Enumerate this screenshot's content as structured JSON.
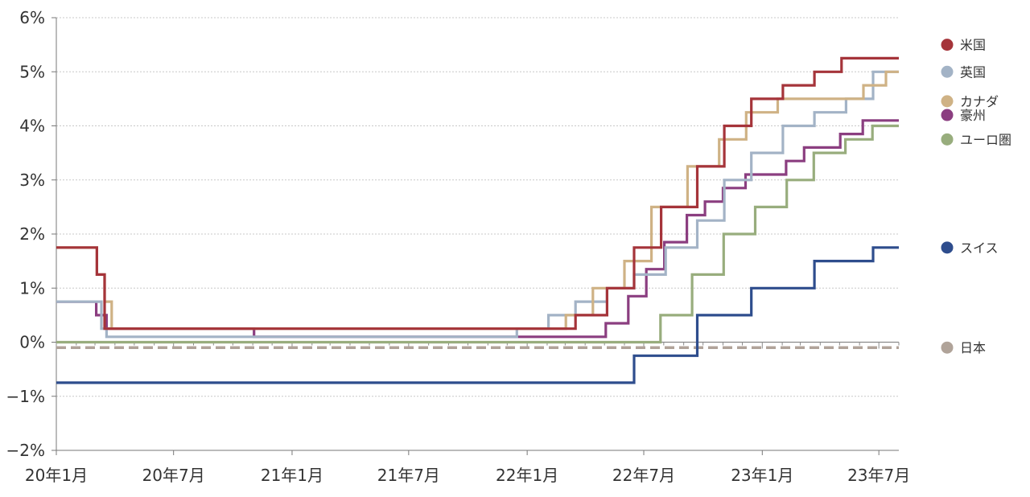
{
  "chart_data": {
    "type": "line",
    "step": true,
    "title": "",
    "xlabel": "",
    "ylabel": "",
    "ylim": [
      -2,
      6
    ],
    "yticks": [
      6,
      5,
      4,
      3,
      2,
      1,
      0,
      -1,
      -2
    ],
    "ytick_labels": [
      "6%",
      "5%",
      "4%",
      "3%",
      "2%",
      "1%",
      "0%",
      "−1%",
      "−2%"
    ],
    "xlim": [
      "2020-01-01",
      "2023-08-01"
    ],
    "xticks": [
      "2020-01-01",
      "2020-07-01",
      "2021-01-01",
      "2021-07-01",
      "2022-01-01",
      "2022-07-01",
      "2023-01-01",
      "2023-07-01"
    ],
    "xtick_labels": [
      "20年1月",
      "20年7月",
      "21年1月",
      "21年7月",
      "22年1月",
      "22年7月",
      "23年1月",
      "23年7月"
    ],
    "grid": true,
    "legend_position": "right",
    "series": [
      {
        "name": "米国",
        "color": "#a5343a",
        "points": [
          [
            "2020-01-01",
            1.75
          ],
          [
            "2020-03-04",
            1.25
          ],
          [
            "2020-03-16",
            0.25
          ],
          [
            "2022-03-17",
            0.5
          ],
          [
            "2022-05-05",
            1.0
          ],
          [
            "2022-06-16",
            1.75
          ],
          [
            "2022-07-28",
            2.5
          ],
          [
            "2022-09-22",
            3.25
          ],
          [
            "2022-11-03",
            4.0
          ],
          [
            "2022-12-15",
            4.5
          ],
          [
            "2023-02-02",
            4.75
          ],
          [
            "2023-03-23",
            5.0
          ],
          [
            "2023-05-04",
            5.25
          ],
          [
            "2023-08-01",
            5.25
          ]
        ]
      },
      {
        "name": "英国",
        "color": "#a3b3c6",
        "points": [
          [
            "2020-01-01",
            0.75
          ],
          [
            "2020-03-11",
            0.25
          ],
          [
            "2020-03-19",
            0.1
          ],
          [
            "2021-12-16",
            0.25
          ],
          [
            "2022-02-03",
            0.5
          ],
          [
            "2022-03-17",
            0.75
          ],
          [
            "2022-05-05",
            1.0
          ],
          [
            "2022-06-16",
            1.25
          ],
          [
            "2022-08-04",
            1.75
          ],
          [
            "2022-09-22",
            2.25
          ],
          [
            "2022-11-03",
            3.0
          ],
          [
            "2022-12-15",
            3.5
          ],
          [
            "2023-02-02",
            4.0
          ],
          [
            "2023-03-23",
            4.25
          ],
          [
            "2023-05-11",
            4.5
          ],
          [
            "2023-06-22",
            5.0
          ],
          [
            "2023-08-01",
            5.0
          ]
        ]
      },
      {
        "name": "カナダ",
        "color": "#cfb285",
        "points": [
          [
            "2020-01-01",
            1.75
          ],
          [
            "2020-03-04",
            1.25
          ],
          [
            "2020-03-16",
            0.75
          ],
          [
            "2020-03-27",
            0.25
          ],
          [
            "2022-03-02",
            0.5
          ],
          [
            "2022-04-13",
            1.0
          ],
          [
            "2022-06-01",
            1.5
          ],
          [
            "2022-07-13",
            2.5
          ],
          [
            "2022-09-07",
            3.25
          ],
          [
            "2022-10-26",
            3.75
          ],
          [
            "2022-12-07",
            4.25
          ],
          [
            "2023-01-25",
            4.5
          ],
          [
            "2023-06-07",
            4.75
          ],
          [
            "2023-07-12",
            5.0
          ],
          [
            "2023-08-01",
            5.0
          ]
        ]
      },
      {
        "name": "豪州",
        "color": "#8b3e80",
        "points": [
          [
            "2020-01-01",
            0.75
          ],
          [
            "2020-03-03",
            0.5
          ],
          [
            "2020-03-19",
            0.25
          ],
          [
            "2020-11-03",
            0.1
          ],
          [
            "2022-05-03",
            0.35
          ],
          [
            "2022-06-07",
            0.85
          ],
          [
            "2022-07-05",
            1.35
          ],
          [
            "2022-08-02",
            1.85
          ],
          [
            "2022-09-06",
            2.35
          ],
          [
            "2022-10-04",
            2.6
          ],
          [
            "2022-11-01",
            2.85
          ],
          [
            "2022-12-06",
            3.1
          ],
          [
            "2023-02-07",
            3.35
          ],
          [
            "2023-03-07",
            3.6
          ],
          [
            "2023-05-02",
            3.85
          ],
          [
            "2023-06-06",
            4.1
          ],
          [
            "2023-08-01",
            4.1
          ]
        ]
      },
      {
        "name": "ユーロ圏",
        "color": "#98ad7d",
        "points": [
          [
            "2020-01-01",
            0.0
          ],
          [
            "2022-07-27",
            0.5
          ],
          [
            "2022-09-14",
            1.25
          ],
          [
            "2022-11-02",
            2.0
          ],
          [
            "2022-12-21",
            2.5
          ],
          [
            "2023-02-08",
            3.0
          ],
          [
            "2023-03-22",
            3.5
          ],
          [
            "2023-05-10",
            3.75
          ],
          [
            "2023-06-21",
            4.0
          ],
          [
            "2023-08-01",
            4.0
          ]
        ]
      },
      {
        "name": "スイス",
        "color": "#2e4d8d",
        "points": [
          [
            "2020-01-01",
            -0.75
          ],
          [
            "2022-06-16",
            -0.25
          ],
          [
            "2022-09-22",
            0.5
          ],
          [
            "2022-12-15",
            1.0
          ],
          [
            "2023-03-23",
            1.5
          ],
          [
            "2023-06-22",
            1.75
          ],
          [
            "2023-08-01",
            1.75
          ]
        ]
      },
      {
        "name": "日本",
        "color": "#b0a399",
        "dashed": true,
        "points": [
          [
            "2020-01-01",
            -0.1
          ],
          [
            "2023-08-01",
            -0.1
          ]
        ]
      }
    ],
    "legend": [
      {
        "name": "米国",
        "color": "#a5343a",
        "anchor_value": 5.5
      },
      {
        "name": "英国",
        "color": "#a3b3c6",
        "anchor_value": 5.0
      },
      {
        "name": "カナダ",
        "color": "#cfb285",
        "anchor_value": 4.5
      },
      {
        "name": "豪州",
        "color": "#8b3e80",
        "anchor_value": 4.2
      },
      {
        "name": "ユーロ圏",
        "color": "#98ad7d",
        "anchor_value": 3.75
      },
      {
        "name": "スイス",
        "color": "#2e4d8d",
        "anchor_value": 1.75
      },
      {
        "name": "日本",
        "color": "#b0a399",
        "anchor_value": -0.1
      }
    ]
  }
}
